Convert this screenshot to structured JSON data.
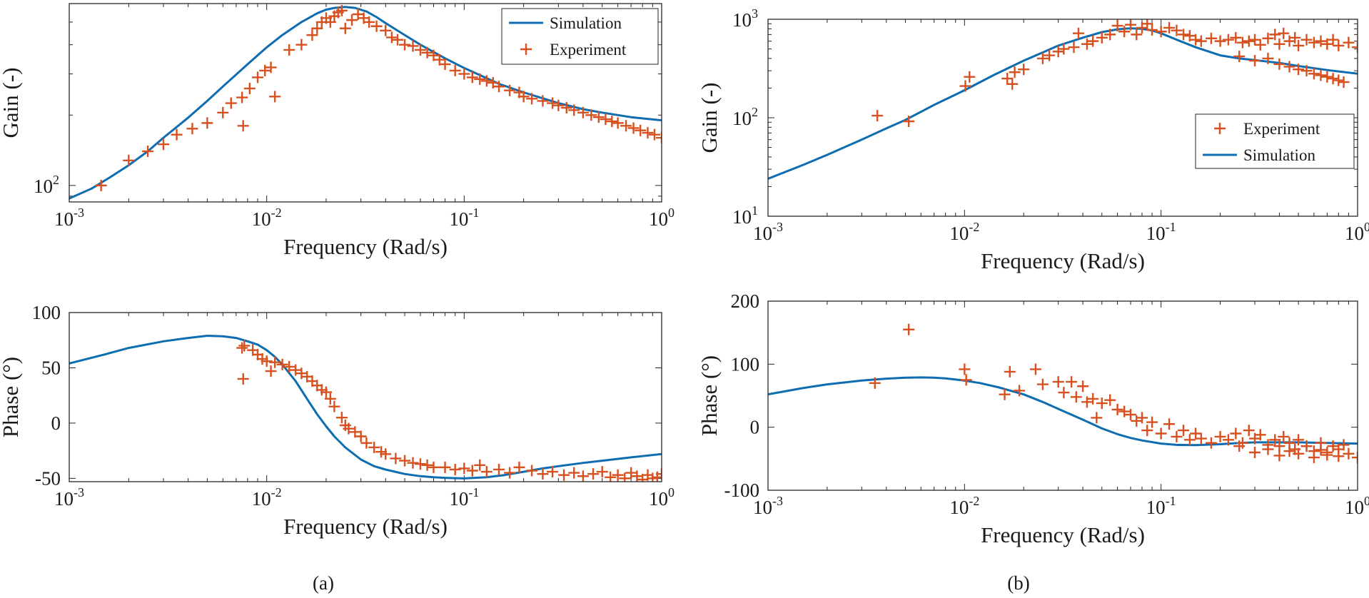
{
  "figure": {
    "captions": [
      "(a)",
      "(b)"
    ]
  },
  "colors": {
    "simulation": "#0e6db0",
    "experiment": "#d6511f",
    "axis": "#262626"
  },
  "chart_data": [
    {
      "id": "a-gain",
      "type": "line",
      "title": "",
      "xlabel": "Frequency (Rad/s)",
      "ylabel": "Gain (-)",
      "xscale": "log",
      "yscale": "log",
      "xlim": [
        0.001,
        1
      ],
      "ylim": [
        85,
        600
      ],
      "xticks": [
        {
          "base": "10",
          "exp": "-3"
        },
        {
          "base": "10",
          "exp": "-2"
        },
        {
          "base": "10",
          "exp": "-1"
        },
        {
          "base": "10",
          "exp": "0"
        }
      ],
      "yticks": [
        {
          "value": 100,
          "base": "10",
          "exp": "2"
        }
      ],
      "legend": {
        "position": "top-right",
        "entries": [
          {
            "kind": "line",
            "series": "simulation",
            "label": "Simulation"
          },
          {
            "kind": "marker",
            "series": "experiment",
            "label": "Experiment"
          }
        ]
      },
      "series": [
        {
          "name": "Simulation",
          "kind": "line",
          "x": [
            0.001,
            0.0013,
            0.0016,
            0.002,
            0.0025,
            0.003,
            0.004,
            0.005,
            0.006,
            0.008,
            0.01,
            0.012,
            0.015,
            0.018,
            0.02,
            0.022,
            0.025,
            0.028,
            0.032,
            0.036,
            0.04,
            0.05,
            0.06,
            0.08,
            0.1,
            0.15,
            0.2,
            0.3,
            0.4,
            0.5,
            0.7,
            1.0
          ],
          "y": [
            88,
            97,
            108,
            122,
            140,
            160,
            195,
            230,
            265,
            330,
            390,
            440,
            500,
            545,
            565,
            575,
            580,
            575,
            555,
            525,
            495,
            440,
            400,
            350,
            318,
            272,
            250,
            225,
            212,
            205,
            196,
            190
          ]
        },
        {
          "name": "Experiment",
          "kind": "scatter",
          "x": [
            0.00145,
            0.002,
            0.0025,
            0.003,
            0.0035,
            0.0042,
            0.005,
            0.006,
            0.0066,
            0.0075,
            0.0076,
            0.0082,
            0.009,
            0.0098,
            0.0105,
            0.011,
            0.013,
            0.015,
            0.017,
            0.018,
            0.019,
            0.02,
            0.021,
            0.022,
            0.023,
            0.024,
            0.025,
            0.027,
            0.029,
            0.031,
            0.033,
            0.036,
            0.04,
            0.043,
            0.046,
            0.05,
            0.055,
            0.06,
            0.065,
            0.07,
            0.075,
            0.08,
            0.09,
            0.1,
            0.11,
            0.12,
            0.13,
            0.14,
            0.15,
            0.17,
            0.19,
            0.2,
            0.22,
            0.25,
            0.28,
            0.3,
            0.33,
            0.36,
            0.4,
            0.44,
            0.48,
            0.52,
            0.56,
            0.6,
            0.66,
            0.72,
            0.78,
            0.85,
            0.92,
            1.0
          ],
          "y": [
            100,
            128,
            140,
            150,
            165,
            175,
            185,
            205,
            225,
            238,
            180,
            260,
            290,
            310,
            320,
            240,
            380,
            400,
            440,
            470,
            500,
            520,
            500,
            530,
            550,
            560,
            470,
            510,
            540,
            520,
            500,
            480,
            460,
            430,
            420,
            400,
            395,
            380,
            370,
            360,
            345,
            330,
            310,
            300,
            290,
            285,
            280,
            275,
            265,
            255,
            250,
            240,
            235,
            230,
            225,
            220,
            215,
            210,
            205,
            200,
            196,
            192,
            188,
            185,
            180,
            176,
            172,
            168,
            165,
            160
          ]
        }
      ]
    },
    {
      "id": "a-phase",
      "type": "line",
      "title": "",
      "xlabel": "Frequency (Rad/s)",
      "ylabel": "Phase (°)",
      "xscale": "log",
      "yscale": "linear",
      "xlim": [
        0.001,
        1
      ],
      "ylim": [
        -53,
        100
      ],
      "xticks": [
        {
          "base": "10",
          "exp": "-3"
        },
        {
          "base": "10",
          "exp": "-2"
        },
        {
          "base": "10",
          "exp": "-1"
        },
        {
          "base": "10",
          "exp": "0"
        }
      ],
      "yticks": [
        {
          "value": 100,
          "label": "100"
        },
        {
          "value": 50,
          "label": "50"
        },
        {
          "value": 0,
          "label": "0"
        },
        {
          "value": -50,
          "label": "-50"
        }
      ],
      "series": [
        {
          "name": "Simulation",
          "kind": "line",
          "x": [
            0.001,
            0.0015,
            0.002,
            0.003,
            0.004,
            0.005,
            0.006,
            0.007,
            0.008,
            0.009,
            0.01,
            0.011,
            0.012,
            0.014,
            0.016,
            0.018,
            0.02,
            0.022,
            0.025,
            0.03,
            0.035,
            0.04,
            0.05,
            0.06,
            0.07,
            0.08,
            0.1,
            0.13,
            0.16,
            0.2,
            0.25,
            0.3,
            0.4,
            0.5,
            0.7,
            1.0
          ],
          "y": [
            54,
            62,
            68,
            74,
            77,
            79,
            78.5,
            77,
            74,
            71,
            66,
            60,
            53,
            38,
            22,
            8,
            -3,
            -12,
            -22,
            -33,
            -39,
            -42,
            -46,
            -48,
            -49,
            -49.5,
            -50,
            -49,
            -47,
            -44,
            -41,
            -39,
            -36,
            -34,
            -31,
            -28
          ]
        },
        {
          "name": "Experiment",
          "kind": "scatter",
          "x": [
            0.0075,
            0.0076,
            0.0077,
            0.0085,
            0.009,
            0.0095,
            0.01,
            0.0105,
            0.011,
            0.012,
            0.013,
            0.014,
            0.015,
            0.016,
            0.017,
            0.018,
            0.019,
            0.02,
            0.021,
            0.022,
            0.024,
            0.025,
            0.026,
            0.028,
            0.03,
            0.032,
            0.035,
            0.038,
            0.04,
            0.045,
            0.05,
            0.055,
            0.06,
            0.065,
            0.07,
            0.08,
            0.09,
            0.1,
            0.11,
            0.12,
            0.13,
            0.15,
            0.17,
            0.19,
            0.22,
            0.25,
            0.28,
            0.32,
            0.36,
            0.4,
            0.45,
            0.5,
            0.55,
            0.6,
            0.65,
            0.7,
            0.75,
            0.8,
            0.85,
            0.9,
            0.95,
            1.0
          ],
          "y": [
            68,
            40,
            70,
            66,
            62,
            58,
            56,
            47,
            55,
            53,
            51,
            48,
            45,
            42,
            38,
            34,
            30,
            28,
            22,
            15,
            5,
            -2,
            -5,
            -8,
            -12,
            -18,
            -22,
            -26,
            -28,
            -32,
            -34,
            -36,
            -37,
            -38,
            -40,
            -40,
            -42,
            -41,
            -43,
            -38,
            -44,
            -42,
            -45,
            -40,
            -43,
            -46,
            -44,
            -47,
            -45,
            -48,
            -46,
            -44,
            -49,
            -47,
            -50,
            -45,
            -48,
            -51,
            -47,
            -50,
            -49,
            -46
          ]
        }
      ]
    },
    {
      "id": "b-gain",
      "type": "line",
      "title": "",
      "xlabel": "Frequency (Rad/s)",
      "ylabel": "Gain (-)",
      "xscale": "log",
      "yscale": "log",
      "xlim": [
        0.001,
        1
      ],
      "ylim": [
        10,
        1000
      ],
      "xticks": [
        {
          "base": "10",
          "exp": "-3"
        },
        {
          "base": "10",
          "exp": "-2"
        },
        {
          "base": "10",
          "exp": "-1"
        },
        {
          "base": "10",
          "exp": "0"
        }
      ],
      "yticks": [
        {
          "value": 1000,
          "base": "10",
          "exp": "3"
        },
        {
          "value": 100,
          "base": "10",
          "exp": "2"
        },
        {
          "value": 10,
          "base": "10",
          "exp": "1"
        }
      ],
      "legend": {
        "position": "right",
        "entries": [
          {
            "kind": "marker",
            "series": "experiment",
            "label": "Experiment"
          },
          {
            "kind": "line",
            "series": "simulation",
            "label": "Simulation"
          }
        ]
      },
      "series": [
        {
          "name": "Simulation",
          "kind": "line",
          "x": [
            0.001,
            0.0015,
            0.002,
            0.003,
            0.004,
            0.005,
            0.007,
            0.01,
            0.014,
            0.02,
            0.025,
            0.03,
            0.04,
            0.05,
            0.06,
            0.07,
            0.08,
            0.09,
            0.1,
            0.12,
            0.15,
            0.2,
            0.25,
            0.3,
            0.4,
            0.5,
            0.7,
            1.0
          ],
          "y": [
            24,
            33,
            42,
            60,
            78,
            95,
            135,
            190,
            270,
            380,
            460,
            540,
            650,
            740,
            790,
            810,
            800,
            770,
            720,
            620,
            520,
            430,
            400,
            385,
            360,
            335,
            305,
            280
          ]
        },
        {
          "name": "Experiment",
          "kind": "scatter",
          "x": [
            0.0036,
            0.0052,
            0.0101,
            0.0106,
            0.0165,
            0.0175,
            0.018,
            0.02,
            0.025,
            0.027,
            0.03,
            0.032,
            0.036,
            0.038,
            0.042,
            0.045,
            0.05,
            0.055,
            0.06,
            0.065,
            0.07,
            0.075,
            0.08,
            0.085,
            0.09,
            0.1,
            0.11,
            0.12,
            0.13,
            0.14,
            0.15,
            0.16,
            0.18,
            0.2,
            0.22,
            0.24,
            0.26,
            0.28,
            0.3,
            0.32,
            0.35,
            0.38,
            0.4,
            0.42,
            0.45,
            0.48,
            0.5,
            0.55,
            0.6,
            0.65,
            0.7,
            0.75,
            0.8,
            0.9,
            1.0,
            0.25,
            0.3,
            0.35,
            0.4,
            0.45,
            0.5,
            0.55,
            0.6,
            0.65,
            0.7,
            0.75,
            0.8,
            0.85
          ],
          "y": [
            105,
            92,
            210,
            260,
            250,
            220,
            290,
            310,
            400,
            430,
            470,
            500,
            520,
            720,
            560,
            600,
            650,
            700,
            860,
            750,
            880,
            700,
            820,
            900,
            780,
            750,
            820,
            770,
            700,
            680,
            620,
            600,
            640,
            600,
            620,
            650,
            580,
            600,
            620,
            550,
            640,
            700,
            560,
            720,
            600,
            650,
            540,
            620,
            580,
            600,
            560,
            620,
            540,
            580,
            520,
            420,
            380,
            400,
            350,
            330,
            310,
            300,
            280,
            270,
            260,
            250,
            240,
            230
          ]
        }
      ]
    },
    {
      "id": "b-phase",
      "type": "line",
      "title": "",
      "xlabel": "Frequency (Rad/s)",
      "ylabel": "Phase (°)",
      "xscale": "log",
      "yscale": "linear",
      "xlim": [
        0.001,
        1
      ],
      "ylim": [
        -100,
        200
      ],
      "xticks": [
        {
          "base": "10",
          "exp": "-3"
        },
        {
          "base": "10",
          "exp": "-2"
        },
        {
          "base": "10",
          "exp": "-1"
        },
        {
          "base": "10",
          "exp": "0"
        }
      ],
      "yticks": [
        {
          "value": 200,
          "label": "200"
        },
        {
          "value": 100,
          "label": "100"
        },
        {
          "value": 0,
          "label": "0"
        },
        {
          "value": -100,
          "label": "-100"
        }
      ],
      "series": [
        {
          "name": "Simulation",
          "kind": "line",
          "x": [
            0.001,
            0.0015,
            0.002,
            0.003,
            0.004,
            0.005,
            0.006,
            0.007,
            0.008,
            0.01,
            0.012,
            0.015,
            0.02,
            0.025,
            0.03,
            0.04,
            0.05,
            0.06,
            0.07,
            0.08,
            0.1,
            0.12,
            0.15,
            0.2,
            0.25,
            0.3,
            0.4,
            0.5,
            0.7,
            1.0
          ],
          "y": [
            52,
            62,
            68,
            74,
            77,
            78.5,
            79,
            78.5,
            77.5,
            74,
            70,
            63,
            52,
            40,
            29,
            12,
            -2,
            -11,
            -17,
            -21,
            -26,
            -28,
            -28.5,
            -27,
            -25,
            -24,
            -24,
            -24,
            -25,
            -26
          ]
        },
        {
          "name": "Experiment",
          "kind": "scatter",
          "x": [
            0.0035,
            0.0052,
            0.01,
            0.0102,
            0.016,
            0.017,
            0.019,
            0.023,
            0.025,
            0.03,
            0.032,
            0.035,
            0.037,
            0.04,
            0.042,
            0.045,
            0.047,
            0.05,
            0.055,
            0.06,
            0.065,
            0.07,
            0.075,
            0.08,
            0.085,
            0.09,
            0.1,
            0.11,
            0.12,
            0.13,
            0.14,
            0.15,
            0.16,
            0.18,
            0.2,
            0.22,
            0.24,
            0.26,
            0.28,
            0.3,
            0.32,
            0.35,
            0.38,
            0.4,
            0.42,
            0.45,
            0.48,
            0.5,
            0.55,
            0.6,
            0.65,
            0.7,
            0.75,
            0.8,
            0.85,
            0.9,
            1.0,
            0.25,
            0.3,
            0.35,
            0.4,
            0.45,
            0.5,
            0.55,
            0.6,
            0.65,
            0.7,
            0.8
          ],
          "y": [
            70,
            155,
            92,
            75,
            52,
            88,
            58,
            92,
            68,
            72,
            55,
            72,
            48,
            65,
            40,
            45,
            15,
            38,
            43,
            28,
            25,
            20,
            10,
            15,
            -5,
            8,
            -10,
            5,
            -15,
            -5,
            -20,
            -10,
            -18,
            -25,
            -15,
            -20,
            -10,
            -25,
            -5,
            -18,
            -12,
            -28,
            -20,
            -30,
            -15,
            -25,
            -35,
            -20,
            -30,
            -38,
            -25,
            -40,
            -30,
            -35,
            -28,
            -42,
            -48,
            -30,
            -40,
            -35,
            -45,
            -38,
            -42,
            -30,
            -48,
            -36,
            -44,
            -46
          ]
        }
      ]
    }
  ]
}
